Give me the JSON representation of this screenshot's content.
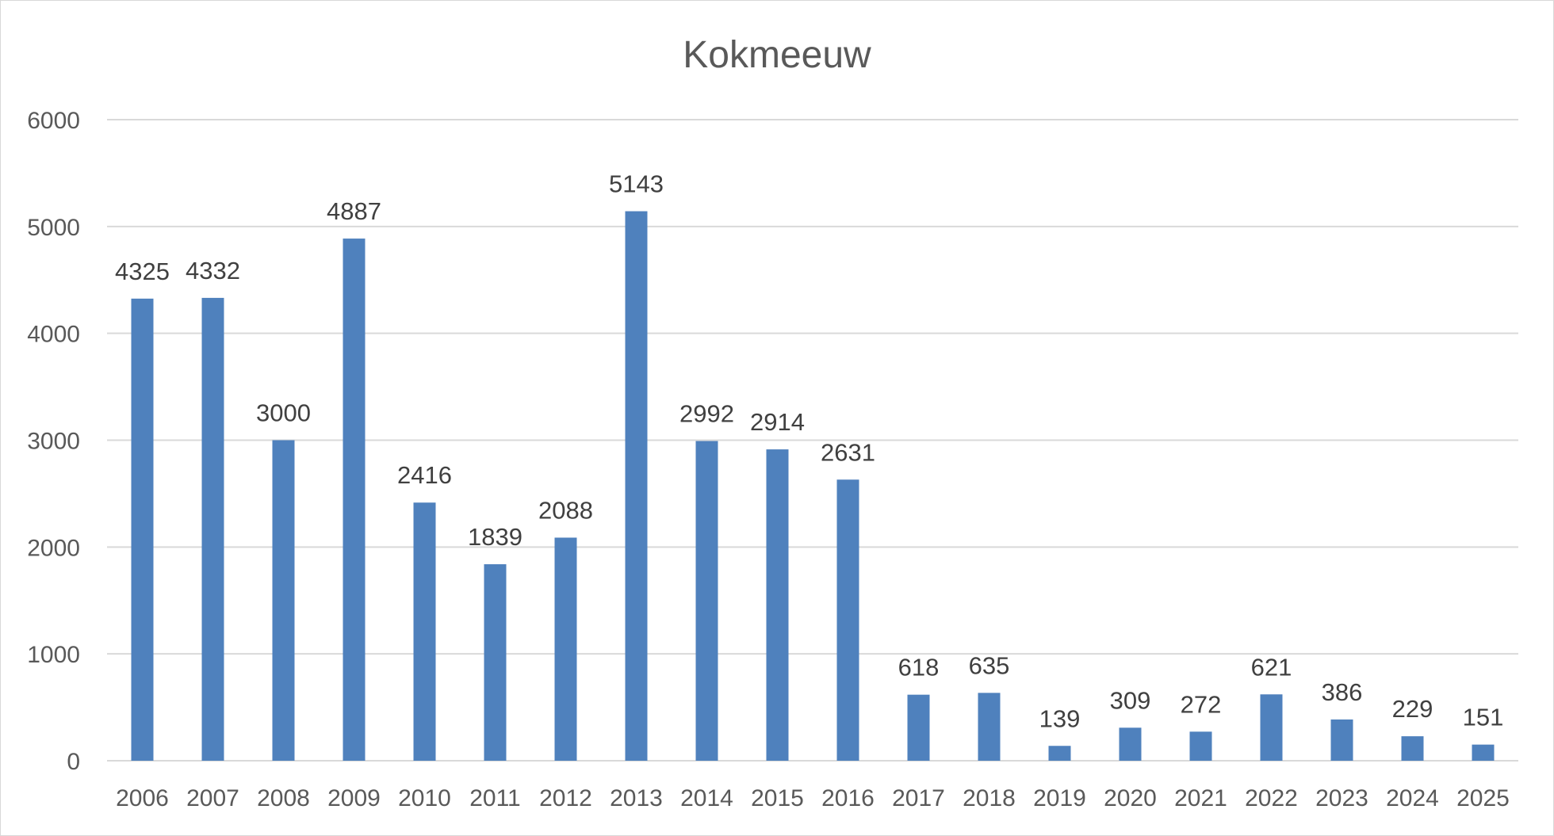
{
  "chart_data": {
    "type": "bar",
    "title": "Kokmeeuw",
    "xlabel": "",
    "ylabel": "",
    "categories": [
      "2006",
      "2007",
      "2008",
      "2009",
      "2010",
      "2011",
      "2012",
      "2013",
      "2014",
      "2015",
      "2016",
      "2017",
      "2018",
      "2019",
      "2020",
      "2021",
      "2022",
      "2023",
      "2024",
      "2025"
    ],
    "values": [
      4325,
      4332,
      3000,
      4887,
      2416,
      1839,
      2088,
      5143,
      2992,
      2914,
      2631,
      618,
      635,
      139,
      309,
      272,
      621,
      386,
      229,
      151
    ],
    "ylim": [
      0,
      6000
    ],
    "yticks": [
      0,
      1000,
      2000,
      3000,
      4000,
      5000,
      6000
    ],
    "grid": true,
    "legend": "none",
    "data_labels": true,
    "bar_color": "#4f81bd"
  }
}
